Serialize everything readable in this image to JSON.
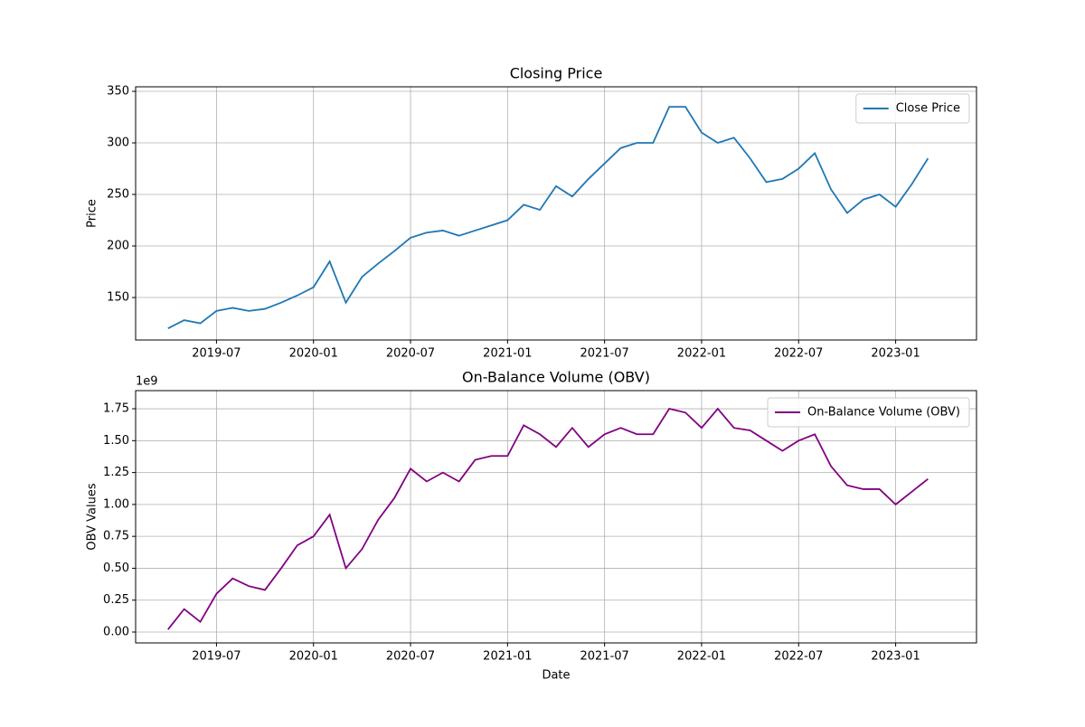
{
  "chart_data": [
    {
      "type": "line",
      "title": "Closing Price",
      "ylabel": "Price",
      "legend": "upper right",
      "grid": true,
      "x": [
        "2019-04",
        "2019-05",
        "2019-06",
        "2019-07",
        "2019-08",
        "2019-09",
        "2019-10",
        "2019-11",
        "2019-12",
        "2020-01",
        "2020-02",
        "2020-03",
        "2020-04",
        "2020-05",
        "2020-06",
        "2020-07",
        "2020-08",
        "2020-09",
        "2020-10",
        "2020-11",
        "2020-12",
        "2021-01",
        "2021-02",
        "2021-03",
        "2021-04",
        "2021-05",
        "2021-06",
        "2021-07",
        "2021-08",
        "2021-09",
        "2021-10",
        "2021-11",
        "2021-12",
        "2022-01",
        "2022-02",
        "2022-03",
        "2022-04",
        "2022-05",
        "2022-06",
        "2022-07",
        "2022-08",
        "2022-09",
        "2022-10",
        "2022-11",
        "2022-12",
        "2023-01",
        "2023-02",
        "2023-03"
      ],
      "series": [
        {
          "name": "Close Price",
          "color": "#1f77b4",
          "values": [
            120,
            128,
            125,
            137,
            140,
            137,
            139,
            145,
            152,
            160,
            185,
            145,
            170,
            183,
            195,
            208,
            213,
            215,
            210,
            215,
            220,
            225,
            240,
            235,
            258,
            248,
            265,
            280,
            295,
            300,
            300,
            335,
            335,
            310,
            300,
            305,
            285,
            262,
            265,
            275,
            290,
            255,
            232,
            245,
            250,
            238,
            260,
            285
          ]
        }
      ],
      "xlim": [
        "2019-02",
        "2023-06"
      ],
      "xticks": [
        "2019-07",
        "2020-01",
        "2020-07",
        "2021-01",
        "2021-07",
        "2022-01",
        "2022-07",
        "2023-01"
      ],
      "ylim": [
        108.8,
        354.4
      ],
      "yticks": [
        150,
        200,
        250,
        300,
        350
      ]
    },
    {
      "type": "line",
      "title": "On-Balance Volume (OBV)",
      "xlabel": "Date",
      "ylabel": "OBV Values",
      "offset_label": "1e9",
      "legend": "upper right",
      "grid": true,
      "x": [
        "2019-04",
        "2019-05",
        "2019-06",
        "2019-07",
        "2019-08",
        "2019-09",
        "2019-10",
        "2019-11",
        "2019-12",
        "2020-01",
        "2020-02",
        "2020-03",
        "2020-04",
        "2020-05",
        "2020-06",
        "2020-07",
        "2020-08",
        "2020-09",
        "2020-10",
        "2020-11",
        "2020-12",
        "2021-01",
        "2021-02",
        "2021-03",
        "2021-04",
        "2021-05",
        "2021-06",
        "2021-07",
        "2021-08",
        "2021-09",
        "2021-10",
        "2021-11",
        "2021-12",
        "2022-01",
        "2022-02",
        "2022-03",
        "2022-04",
        "2022-05",
        "2022-06",
        "2022-07",
        "2022-08",
        "2022-09",
        "2022-10",
        "2022-11",
        "2022-12",
        "2023-01",
        "2023-02",
        "2023-03"
      ],
      "series": [
        {
          "name": "On-Balance Volume (OBV)",
          "color": "#800080",
          "values": [
            0.02,
            0.18,
            0.08,
            0.3,
            0.42,
            0.36,
            0.33,
            0.5,
            0.68,
            0.75,
            0.92,
            0.5,
            0.65,
            0.88,
            1.05,
            1.28,
            1.18,
            1.25,
            1.18,
            1.35,
            1.38,
            1.38,
            1.62,
            1.55,
            1.45,
            1.6,
            1.45,
            1.55,
            1.6,
            1.55,
            1.55,
            1.75,
            1.72,
            1.6,
            1.75,
            1.6,
            1.58,
            1.5,
            1.42,
            1.5,
            1.55,
            1.3,
            1.15,
            1.12,
            1.12,
            1.0,
            1.1,
            1.2
          ]
        }
      ],
      "xlim": [
        "2019-02",
        "2023-06"
      ],
      "xticks": [
        "2019-07",
        "2020-01",
        "2020-07",
        "2021-01",
        "2021-07",
        "2022-01",
        "2022-07",
        "2023-01"
      ],
      "ylim": [
        -0.085,
        1.892
      ],
      "yticks": [
        {
          "value": 0,
          "label": "0.00"
        },
        0.25,
        {
          "value": 0.5,
          "label": "0.50"
        },
        0.75,
        {
          "value": 1,
          "label": "1.00"
        },
        1.25,
        {
          "value": 1.5,
          "label": "1.50"
        },
        1.75
      ]
    }
  ]
}
